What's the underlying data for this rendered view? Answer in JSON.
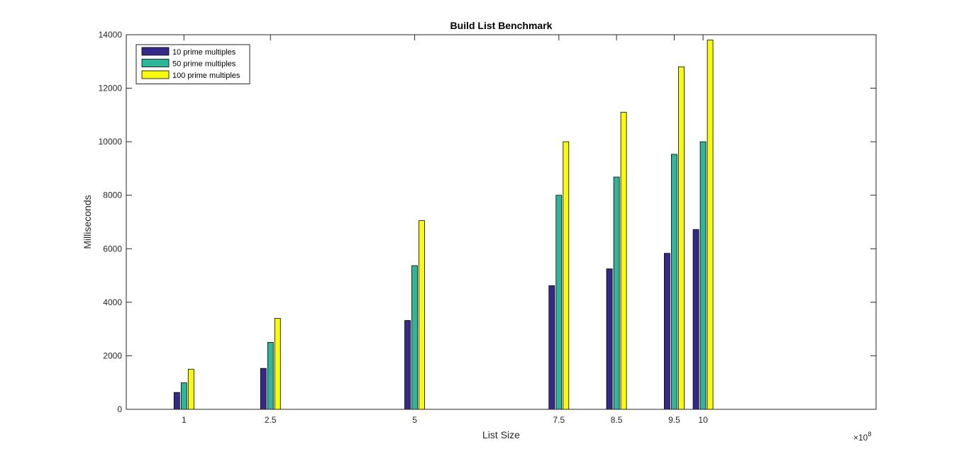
{
  "chart_data": {
    "type": "bar",
    "title": "Build List Benchmark",
    "xlabel": "List Size",
    "ylabel": "Milliseconds",
    "x_exponent_label": "×10",
    "x_exponent": "8",
    "x": [
      1,
      2.5,
      5,
      7.5,
      8.5,
      9.5,
      10
    ],
    "xtick_labels": [
      "1",
      "2.5",
      "5",
      "7.5",
      "8.5",
      "9.5",
      "10"
    ],
    "xlim": [
      0,
      13
    ],
    "ylim": [
      0,
      14000
    ],
    "yticks": [
      0,
      2000,
      4000,
      6000,
      8000,
      10000,
      12000,
      14000
    ],
    "ytick_labels": [
      "0",
      "2000",
      "4000",
      "6000",
      "8000",
      "10000",
      "12000",
      "14000"
    ],
    "legend_position": "top-left",
    "series": [
      {
        "name": "10 prime multiples",
        "color": "#352a87",
        "values": [
          630,
          1530,
          3320,
          4620,
          5250,
          5830,
          6720
        ]
      },
      {
        "name": "50 prime multiples",
        "color": "#2fb699",
        "values": [
          990,
          2500,
          5370,
          8000,
          8680,
          9530,
          10000
        ]
      },
      {
        "name": "100 prime multiples",
        "color": "#f9fb0e",
        "values": [
          1500,
          3400,
          7050,
          10000,
          11100,
          12800,
          13800
        ]
      }
    ]
  }
}
